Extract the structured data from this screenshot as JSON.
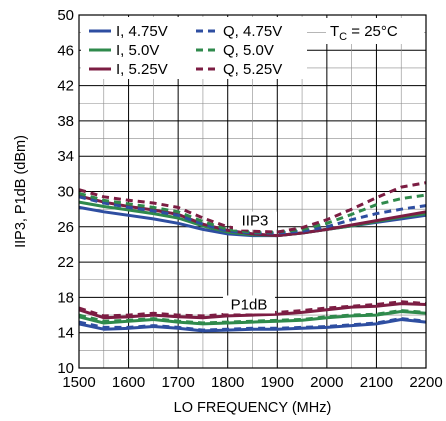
{
  "chart_data": {
    "type": "line",
    "xlabel": "LO FREQUENCY (MHz)",
    "ylabel": "IIP3, P1dB (dBm)",
    "xlim": [
      1500,
      2200
    ],
    "ylim": [
      10,
      50
    ],
    "x_ticks": [
      "1500",
      "1600",
      "1700",
      "1800",
      "1900",
      "2000",
      "2100",
      "2200"
    ],
    "y_ticks": [
      "10",
      "14",
      "18",
      "22",
      "26",
      "30",
      "34",
      "38",
      "42",
      "46",
      "50"
    ],
    "grid": true,
    "legend_position": "top-left",
    "condition_label": {
      "prefix": "T",
      "subscript": "C",
      "suffix": " = 25°C"
    },
    "annotations": [
      "IIP3",
      "P1dB"
    ],
    "x": [
      1500,
      1550,
      1600,
      1650,
      1700,
      1750,
      1800,
      1850,
      1900,
      1950,
      2000,
      2050,
      2100,
      2150,
      2200
    ],
    "series": [
      {
        "name": "I, 4.75V",
        "color": "#2e4ea1",
        "dash": false,
        "iip3": [
          28.2,
          27.7,
          27.3,
          26.9,
          26.4,
          25.7,
          25.2,
          25.0,
          25.0,
          25.3,
          25.7,
          26.1,
          26.5,
          26.9,
          27.3
        ],
        "p1db": [
          15.0,
          14.4,
          14.5,
          14.7,
          14.5,
          14.2,
          14.3,
          14.4,
          14.4,
          14.5,
          14.6,
          14.8,
          15.0,
          15.5,
          15.2
        ]
      },
      {
        "name": "I, 5.0V",
        "color": "#2f8a4c",
        "dash": false,
        "iip3": [
          28.8,
          28.3,
          27.9,
          27.5,
          27.0,
          26.1,
          25.4,
          25.1,
          25.0,
          25.3,
          25.7,
          26.1,
          26.6,
          27.1,
          27.5
        ],
        "p1db": [
          15.8,
          15.1,
          15.3,
          15.5,
          15.2,
          15.0,
          15.1,
          15.2,
          15.3,
          15.4,
          15.7,
          15.9,
          16.0,
          16.4,
          16.2
        ]
      },
      {
        "name": "I, 5.25V",
        "color": "#7c1d43",
        "dash": false,
        "iip3": [
          29.5,
          28.8,
          28.3,
          27.9,
          27.4,
          26.3,
          25.6,
          25.2,
          25.0,
          25.3,
          25.7,
          26.2,
          26.7,
          27.2,
          27.7
        ],
        "p1db": [
          16.6,
          15.7,
          15.8,
          16.0,
          15.8,
          15.7,
          15.9,
          16.0,
          16.1,
          16.3,
          16.6,
          16.9,
          17.0,
          17.3,
          17.2
        ]
      },
      {
        "name": "Q, 4.75V",
        "color": "#2e4ea1",
        "dash": true,
        "iip3": [
          29.4,
          28.7,
          28.2,
          27.8,
          27.3,
          26.3,
          25.5,
          25.3,
          25.3,
          25.5,
          26.0,
          26.8,
          27.5,
          28.0,
          28.4
        ],
        "p1db": [
          15.2,
          14.6,
          14.6,
          14.8,
          14.6,
          14.3,
          14.4,
          14.5,
          14.5,
          14.6,
          14.7,
          14.9,
          15.1,
          15.6,
          15.3
        ]
      },
      {
        "name": "Q, 5.0V",
        "color": "#2f8a4c",
        "dash": true,
        "iip3": [
          29.8,
          29.0,
          28.6,
          28.2,
          27.7,
          26.6,
          25.7,
          25.4,
          25.4,
          25.7,
          26.4,
          27.4,
          28.5,
          29.2,
          29.6
        ],
        "p1db": [
          16.0,
          15.3,
          15.4,
          15.6,
          15.3,
          15.1,
          15.2,
          15.3,
          15.4,
          15.5,
          15.8,
          16.0,
          16.1,
          16.5,
          16.3
        ]
      },
      {
        "name": "Q, 5.25V",
        "color": "#7c1d43",
        "dash": true,
        "iip3": [
          30.2,
          29.4,
          29.0,
          28.7,
          28.2,
          27.0,
          26.0,
          25.5,
          25.4,
          25.9,
          26.8,
          28.0,
          29.3,
          30.5,
          31.0
        ],
        "p1db": [
          16.8,
          15.9,
          16.0,
          16.2,
          16.0,
          15.9,
          16.1,
          16.2,
          16.3,
          16.5,
          16.8,
          17.0,
          17.2,
          17.5,
          17.3
        ]
      }
    ]
  }
}
